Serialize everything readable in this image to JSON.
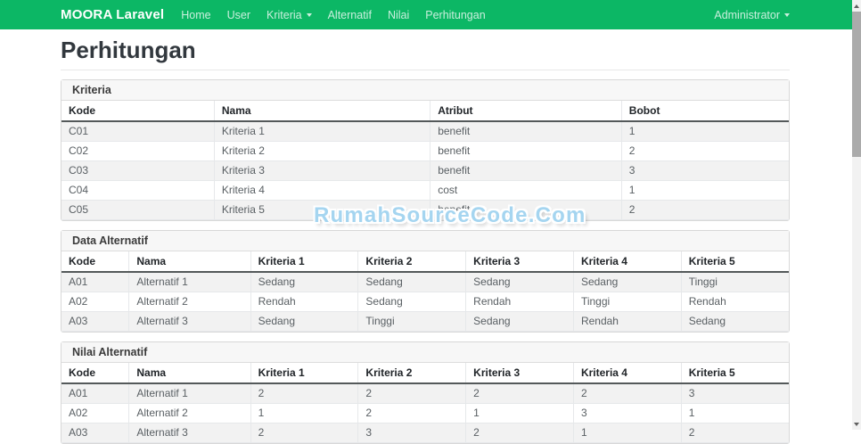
{
  "navbar": {
    "brand": "MOORA Laravel",
    "items": [
      {
        "label": "Home"
      },
      {
        "label": "User"
      },
      {
        "label": "Kriteria"
      },
      {
        "label": "Alternatif"
      },
      {
        "label": "Nilai"
      },
      {
        "label": "Perhitungan"
      }
    ],
    "user_menu": "Administrator",
    "bg_color": "#0cb765"
  },
  "page": {
    "title": "Perhitungan"
  },
  "watermark": {
    "text": "RumahSourceCode.Com",
    "color": "#a5d5f0"
  },
  "cards": [
    {
      "title": "Kriteria",
      "columns": [
        "Kode",
        "Nama",
        "Atribut",
        "Bobot"
      ],
      "rows": [
        [
          "C01",
          "Kriteria 1",
          "benefit",
          "1"
        ],
        [
          "C02",
          "Kriteria 2",
          "benefit",
          "2"
        ],
        [
          "C03",
          "Kriteria 3",
          "benefit",
          "3"
        ],
        [
          "C04",
          "Kriteria 4",
          "cost",
          "1"
        ],
        [
          "C05",
          "Kriteria 5",
          "benefit",
          "2"
        ]
      ]
    },
    {
      "title": "Data Alternatif",
      "columns": [
        "Kode",
        "Nama",
        "Kriteria 1",
        "Kriteria 2",
        "Kriteria 3",
        "Kriteria 4",
        "Kriteria 5"
      ],
      "rows": [
        [
          "A01",
          "Alternatif 1",
          "Sedang",
          "Sedang",
          "Sedang",
          "Sedang",
          "Tinggi"
        ],
        [
          "A02",
          "Alternatif 2",
          "Rendah",
          "Sedang",
          "Rendah",
          "Tinggi",
          "Rendah"
        ],
        [
          "A03",
          "Alternatif 3",
          "Sedang",
          "Tinggi",
          "Sedang",
          "Rendah",
          "Sedang"
        ]
      ]
    },
    {
      "title": "Nilai Alternatif",
      "columns": [
        "Kode",
        "Nama",
        "Kriteria 1",
        "Kriteria 2",
        "Kriteria 3",
        "Kriteria 4",
        "Kriteria 5"
      ],
      "rows": [
        [
          "A01",
          "Alternatif 1",
          "2",
          "2",
          "2",
          "2",
          "3"
        ],
        [
          "A02",
          "Alternatif 2",
          "1",
          "2",
          "1",
          "3",
          "1"
        ],
        [
          "A03",
          "Alternatif 3",
          "2",
          "3",
          "2",
          "1",
          "2"
        ]
      ]
    }
  ]
}
